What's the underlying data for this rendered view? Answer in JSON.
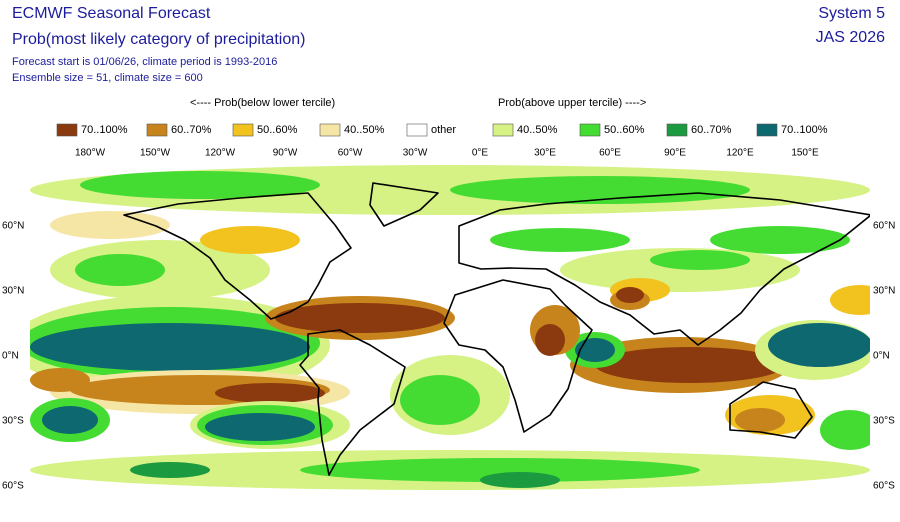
{
  "header": {
    "title": "ECMWF Seasonal Forecast",
    "subtitle": "Prob(most likely category of precipitation)",
    "forecast_line": "Forecast start is 01/06/26, climate period is 1993-2016",
    "ensemble_line": "Ensemble size = 51, climate size = 600",
    "system": "System 5",
    "season": "JAS 2026"
  },
  "legend": {
    "below_label": "<---- Prob(below lower tercile)",
    "above_label": "Prob(above upper tercile) ---->",
    "items": [
      {
        "label": "70..100%",
        "color": "#8b3a0f"
      },
      {
        "label": "60..70%",
        "color": "#c8841c"
      },
      {
        "label": "50..60%",
        "color": "#f2c21e"
      },
      {
        "label": "40..50%",
        "color": "#f6e6a6"
      },
      {
        "label": "other",
        "color": "#ffffff"
      },
      {
        "label": "40..50%",
        "color": "#d6f285"
      },
      {
        "label": "50..60%",
        "color": "#44dc32"
      },
      {
        "label": "60..70%",
        "color": "#1c9a40"
      },
      {
        "label": "70..100%",
        "color": "#0e6870"
      }
    ]
  },
  "map": {
    "lon_labels": [
      "180°W",
      "150°W",
      "120°W",
      "90°W",
      "60°W",
      "30°W",
      "0°E",
      "30°E",
      "60°E",
      "90°E",
      "120°E",
      "150°E"
    ],
    "lat_labels": [
      "60°N",
      "30°N",
      "0°N",
      "30°S",
      "60°S"
    ]
  }
}
